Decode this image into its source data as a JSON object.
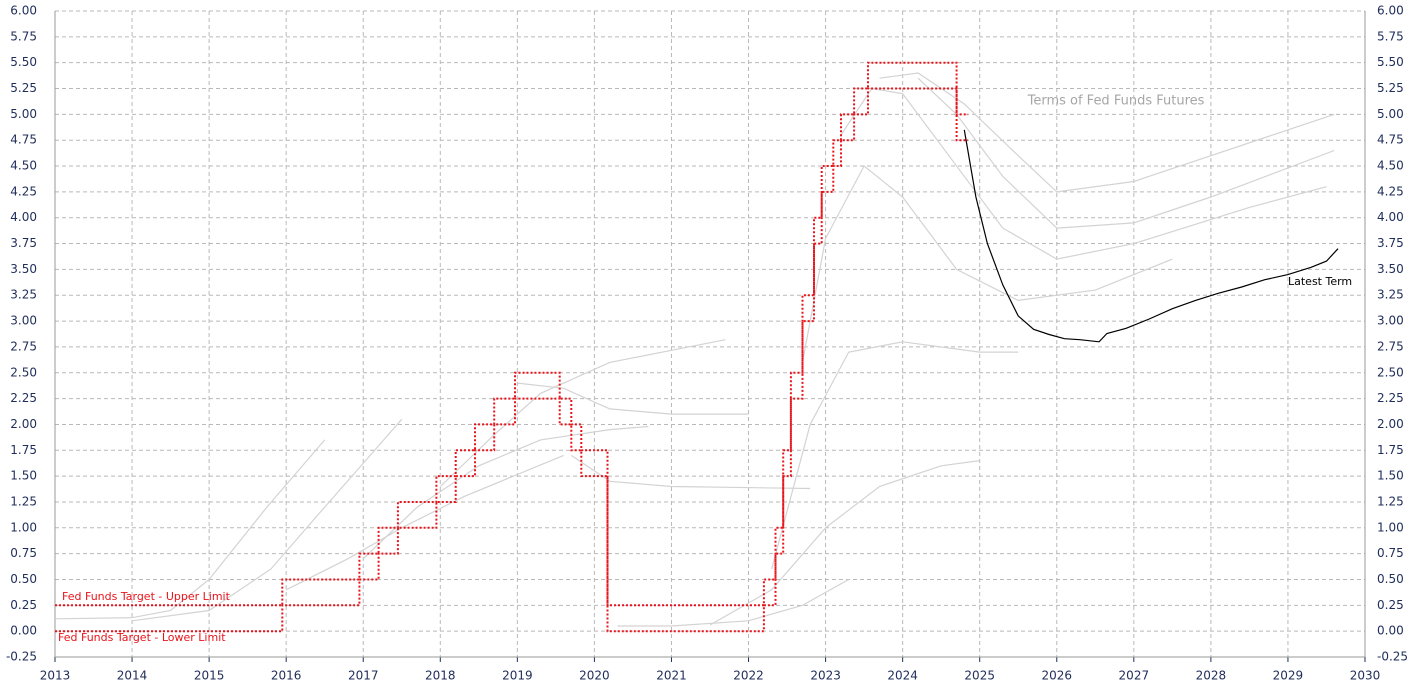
{
  "chart_data": {
    "type": "line",
    "title": "Terms of Fed Funds Futures",
    "xlim": [
      2013,
      2030
    ],
    "xticks": [
      2013,
      2014,
      2015,
      2016,
      2017,
      2018,
      2019,
      2020,
      2021,
      2022,
      2023,
      2024,
      2025,
      2026,
      2027,
      2028,
      2029,
      2030
    ],
    "ylim": [
      -0.25,
      6.0
    ],
    "yticks": [
      {
        "value": -0.25,
        "label": "-0.25"
      },
      {
        "value": 0,
        "label": "0.00"
      },
      {
        "value": 0.25,
        "label": "0.25"
      },
      {
        "value": 0.5,
        "label": "0.50"
      },
      {
        "value": 0.75,
        "label": "0.75"
      },
      {
        "value": 1,
        "label": "1.00"
      },
      {
        "value": 1.25,
        "label": "1.25"
      },
      {
        "value": 1.5,
        "label": "1.50"
      },
      {
        "value": 1.75,
        "label": "1.75"
      },
      {
        "value": 2,
        "label": "2.00"
      },
      {
        "value": 2.25,
        "label": "2.25"
      },
      {
        "value": 2.5,
        "label": "2.50"
      },
      {
        "value": 2.75,
        "label": "2.75"
      },
      {
        "value": 3,
        "label": "3.00"
      },
      {
        "value": 3.25,
        "label": "3.25"
      },
      {
        "value": 3.5,
        "label": "3.50"
      },
      {
        "value": 3.75,
        "label": "3.75"
      },
      {
        "value": 4,
        "label": "4.00"
      },
      {
        "value": 4.25,
        "label": "4.25"
      },
      {
        "value": 4.5,
        "label": "4.50"
      },
      {
        "value": 4.75,
        "label": "4.75"
      },
      {
        "value": 5,
        "label": "5.00"
      },
      {
        "value": 5.25,
        "label": "5.25"
      },
      {
        "value": 5.5,
        "label": "5.50"
      },
      {
        "value": 5.75,
        "label": "5.75"
      },
      {
        "value": 6,
        "label": "6.00"
      }
    ],
    "y2lim": [
      -0.25,
      6.0
    ],
    "y2ticks": [
      {
        "value": -0.25,
        "label": "-0.25"
      },
      {
        "value": 0,
        "label": "0.00"
      },
      {
        "value": 0.25,
        "label": "0.25"
      },
      {
        "value": 0.5,
        "label": "0.50"
      },
      {
        "value": 0.75,
        "label": "0.75"
      },
      {
        "value": 1,
        "label": "1.00"
      },
      {
        "value": 1.25,
        "label": "1.25"
      },
      {
        "value": 1.5,
        "label": "1.50"
      },
      {
        "value": 1.75,
        "label": "1.75"
      },
      {
        "value": 2,
        "label": "2.00"
      },
      {
        "value": 2.25,
        "label": "2.25"
      },
      {
        "value": 2.5,
        "label": "2.50"
      },
      {
        "value": 2.75,
        "label": "2.75"
      },
      {
        "value": 3,
        "label": "3.00"
      },
      {
        "value": 3.25,
        "label": "3.25"
      },
      {
        "value": 3.5,
        "label": "3.50"
      },
      {
        "value": 3.75,
        "label": "3.75"
      },
      {
        "value": 4,
        "label": "4.00"
      },
      {
        "value": 4.25,
        "label": "4.25"
      },
      {
        "value": 4.5,
        "label": "4.50"
      },
      {
        "value": 4.75,
        "label": "4.75"
      },
      {
        "value": 5,
        "label": "5.00"
      },
      {
        "value": 5.25,
        "label": "5.25"
      },
      {
        "value": 5.5,
        "label": "5.50"
      },
      {
        "value": 5.75,
        "label": "5.75"
      },
      {
        "value": 6,
        "label": "6.00"
      }
    ],
    "grid": true,
    "series": [
      {
        "color": "#d3d3d3",
        "x": [
          2013,
          2014,
          2014.5,
          2015,
          2015.75,
          2016.5
        ],
        "values": [
          0.12,
          0.13,
          0.2,
          0.5,
          1.2,
          1.85
        ]
      },
      {
        "color": "#d3d3d3",
        "x": [
          2014,
          2015,
          2015.8,
          2016.5,
          2017.5
        ],
        "values": [
          0.1,
          0.2,
          0.6,
          1.2,
          2.05
        ]
      },
      {
        "color": "#d3d3d3",
        "x": [
          2016,
          2016.8,
          2017.5,
          2018.3,
          2019.6
        ],
        "values": [
          0.4,
          0.7,
          1.0,
          1.3,
          1.7
        ]
      },
      {
        "color": "#d3d3d3",
        "x": [
          2017,
          2017.7,
          2018.5,
          2019.3,
          2020.2,
          2020.7
        ],
        "values": [
          0.7,
          1.2,
          1.6,
          1.85,
          1.95,
          1.98
        ]
      },
      {
        "color": "#d3d3d3",
        "x": [
          2018,
          2018.7,
          2019.3,
          2020.2,
          2021.7
        ],
        "values": [
          1.4,
          1.9,
          2.3,
          2.6,
          2.82
        ]
      },
      {
        "color": "#d3d3d3",
        "x": [
          2019,
          2019.6,
          2020.2,
          2021,
          2022
        ],
        "values": [
          2.4,
          2.35,
          2.15,
          2.1,
          2.1
        ]
      },
      {
        "color": "#d3d3d3",
        "x": [
          2019.7,
          2020.2,
          2021,
          2022.8
        ],
        "values": [
          1.7,
          1.45,
          1.4,
          1.38
        ]
      },
      {
        "color": "#d3d3d3",
        "x": [
          2020.3,
          2021,
          2022,
          2022.7,
          2023.3
        ],
        "values": [
          0.05,
          0.05,
          0.1,
          0.25,
          0.5
        ]
      },
      {
        "color": "#d3d3d3",
        "x": [
          2021.5,
          2022.3,
          2023,
          2023.7,
          2024.5,
          2025
        ],
        "values": [
          0.06,
          0.4,
          1.0,
          1.4,
          1.6,
          1.65
        ]
      },
      {
        "color": "#d3d3d3",
        "x": [
          2022.3,
          2022.8,
          2023.3,
          2024,
          2025,
          2025.5
        ],
        "values": [
          0.6,
          2.0,
          2.7,
          2.8,
          2.7,
          2.7
        ]
      },
      {
        "color": "#d3d3d3",
        "x": [
          2022.7,
          2023,
          2023.5,
          2024,
          2024.7,
          2025.5,
          2026.5,
          2027.5
        ],
        "values": [
          2.6,
          3.8,
          4.5,
          4.2,
          3.5,
          3.2,
          3.3,
          3.6
        ]
      },
      {
        "color": "#d3d3d3",
        "x": [
          2023.2,
          2023.6,
          2024,
          2024.6,
          2025.3,
          2026,
          2027,
          2028.5,
          2029.5
        ],
        "values": [
          4.8,
          5.25,
          5.2,
          4.6,
          3.9,
          3.6,
          3.75,
          4.1,
          4.3
        ]
      },
      {
        "color": "#d3d3d3",
        "x": [
          2023.7,
          2024.2,
          2024.8,
          2025.5,
          2026,
          2027,
          2028,
          2029,
          2029.6
        ],
        "values": [
          5.35,
          5.4,
          5.1,
          4.6,
          4.25,
          4.35,
          4.6,
          4.85,
          5.0
        ]
      },
      {
        "color": "#d3d3d3",
        "x": [
          2024.2,
          2024.7,
          2025.3,
          2026,
          2027,
          2028,
          2029.6
        ],
        "values": [
          5.35,
          5.0,
          4.4,
          3.9,
          3.95,
          4.2,
          4.65
        ]
      },
      {
        "name": "Fed Funds Target - Upper Limit",
        "color": "#e8141b",
        "dotted": true,
        "x": [
          2013,
          2015.95,
          2015.95,
          2016.95,
          2016.95,
          2017.2,
          2017.2,
          2017.45,
          2017.45,
          2017.95,
          2017.95,
          2018.2,
          2018.2,
          2018.45,
          2018.45,
          2018.7,
          2018.7,
          2018.97,
          2018.97,
          2019.55,
          2019.55,
          2019.7,
          2019.7,
          2019.83,
          2019.83,
          2020.17,
          2020.17,
          2022.2,
          2022.2,
          2022.35,
          2022.35,
          2022.45,
          2022.45,
          2022.55,
          2022.55,
          2022.7,
          2022.7,
          2022.85,
          2022.85,
          2022.95,
          2022.95,
          2023.1,
          2023.1,
          2023.2,
          2023.2,
          2023.37,
          2023.37,
          2023.55,
          2023.55,
          2024.7,
          2024.7,
          2024.85
        ],
        "values": [
          0.25,
          0.25,
          0.5,
          0.5,
          0.75,
          0.75,
          1,
          1,
          1.25,
          1.25,
          1.5,
          1.5,
          1.75,
          1.75,
          2,
          2,
          2.25,
          2.25,
          2.5,
          2.5,
          2.25,
          2.25,
          2,
          2,
          1.75,
          1.75,
          0.25,
          0.25,
          0.5,
          0.5,
          1,
          1,
          1.75,
          1.75,
          2.5,
          2.5,
          3.25,
          3.25,
          4,
          4,
          4.5,
          4.5,
          4.75,
          4.75,
          5,
          5,
          5.25,
          5.25,
          5.5,
          5.5,
          5,
          5
        ]
      },
      {
        "name": "Fed Funds Target - Lower Limit",
        "color": "#e8141b",
        "dotted": true,
        "x": [
          2013,
          2015.95,
          2015.95,
          2016.95,
          2016.95,
          2017.2,
          2017.2,
          2017.45,
          2017.45,
          2017.95,
          2017.95,
          2018.2,
          2018.2,
          2018.45,
          2018.45,
          2018.7,
          2018.7,
          2018.97,
          2018.97,
          2019.55,
          2019.55,
          2019.7,
          2019.7,
          2019.83,
          2019.83,
          2020.17,
          2020.17,
          2022.2,
          2022.2,
          2022.35,
          2022.35,
          2022.45,
          2022.45,
          2022.55,
          2022.55,
          2022.7,
          2022.7,
          2022.85,
          2022.85,
          2022.95,
          2022.95,
          2023.1,
          2023.1,
          2023.2,
          2023.2,
          2023.37,
          2023.37,
          2023.55,
          2023.55,
          2024.7,
          2024.7,
          2024.85
        ],
        "values": [
          0,
          0,
          0.25,
          0.25,
          0.5,
          0.5,
          0.75,
          0.75,
          1,
          1,
          1.25,
          1.25,
          1.5,
          1.5,
          1.75,
          1.75,
          2,
          2,
          2.25,
          2.25,
          2,
          2,
          1.75,
          1.75,
          1.5,
          1.5,
          0,
          0,
          0.25,
          0.25,
          0.75,
          0.75,
          1.5,
          1.5,
          2.25,
          2.25,
          3,
          3,
          3.75,
          3.75,
          4.25,
          4.25,
          4.5,
          4.5,
          4.75,
          4.75,
          5,
          5,
          5.25,
          5.25,
          4.75,
          4.75
        ]
      },
      {
        "name": "Latest Term",
        "color": "#000000",
        "x": [
          2024.8,
          2024.95,
          2025.1,
          2025.3,
          2025.5,
          2025.7,
          2025.9,
          2026.1,
          2026.3,
          2026.55,
          2026.65,
          2026.9,
          2027.2,
          2027.5,
          2027.8,
          2028.1,
          2028.4,
          2028.7,
          2029.0,
          2029.3,
          2029.5,
          2029.65
        ],
        "values": [
          4.85,
          4.2,
          3.75,
          3.35,
          3.05,
          2.92,
          2.87,
          2.83,
          2.82,
          2.8,
          2.88,
          2.93,
          3.02,
          3.12,
          3.2,
          3.27,
          3.33,
          3.4,
          3.45,
          3.52,
          3.58,
          3.7
        ]
      }
    ]
  }
}
